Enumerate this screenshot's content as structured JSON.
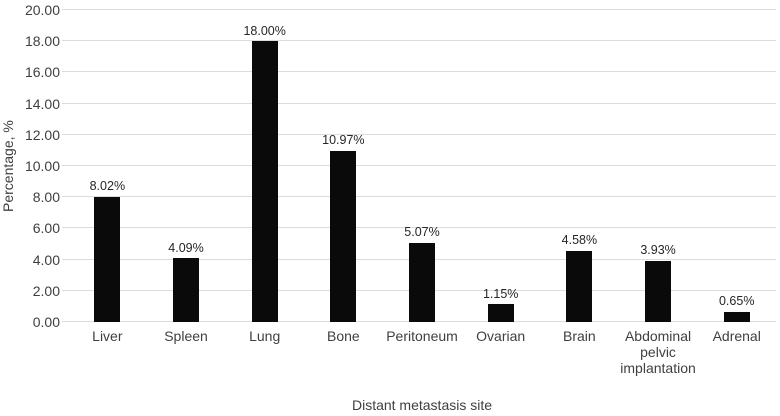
{
  "chart_data": {
    "type": "bar",
    "title": "",
    "xlabel": "Distant metastasis site",
    "ylabel": "Percentage, %",
    "categories": [
      "Liver",
      "Spleen",
      "Lung",
      "Bone",
      "Peritoneum",
      "Ovarian",
      "Brain",
      "Abdominal pelvic implantation",
      "Adrenal"
    ],
    "values": [
      8.02,
      4.09,
      18,
      10.97,
      5.07,
      1.15,
      4.58,
      3.93,
      0.65
    ],
    "value_labels": [
      "8.02%",
      "4.09%",
      "18.00%",
      "10.97%",
      "5.07%",
      "1.15%",
      "4.58%",
      "3.93%",
      "0.65%"
    ],
    "ylim": [
      0,
      20
    ],
    "ytick_interval": 2,
    "ytick_labels": [
      "0.00",
      "2.00",
      "4.00",
      "6.00",
      "8.00",
      "10.00",
      "12.00",
      "14.00",
      "16.00",
      "18.00",
      "20.00"
    ],
    "grid": "horizontal",
    "legend": "none",
    "colors": {
      "bar": "#0a0a0a",
      "gridline": "#dcdcdc",
      "axis_text": "#3f3f3f",
      "value_text": "#262626",
      "background": "#ffffff"
    }
  }
}
